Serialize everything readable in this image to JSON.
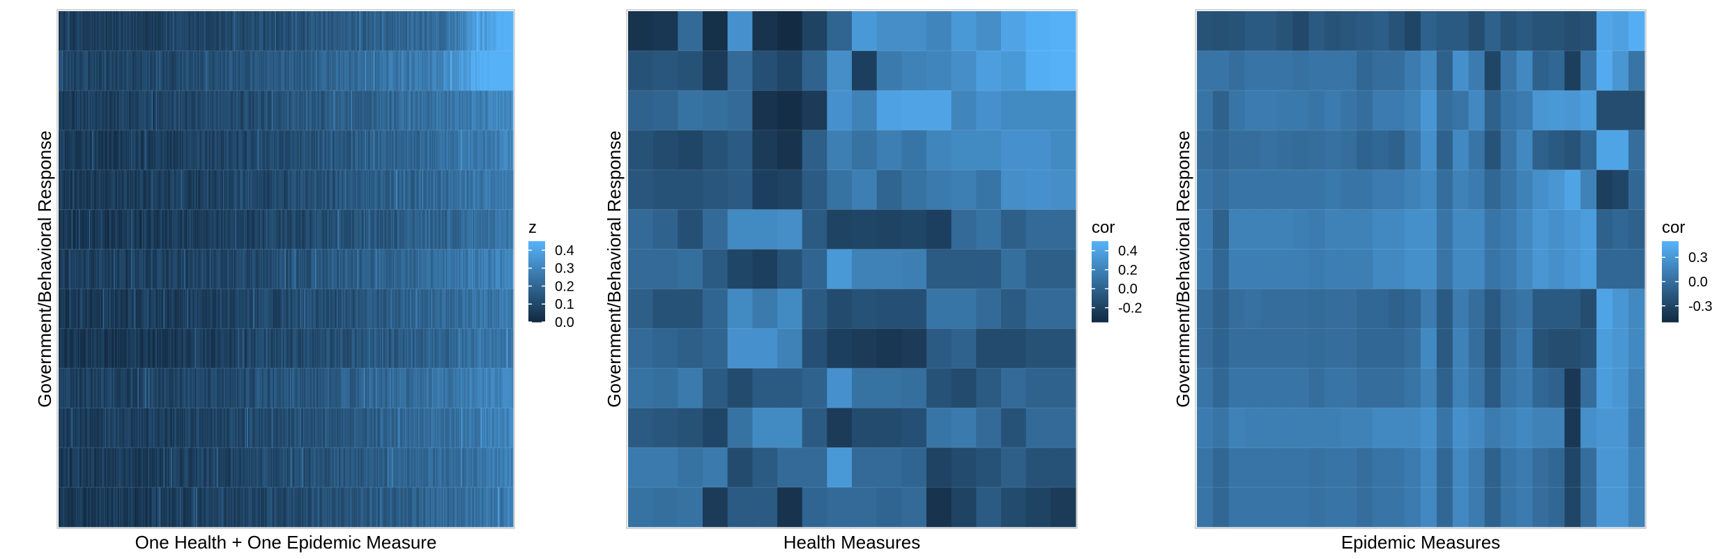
{
  "chart_data": [
    {
      "type": "heatmap",
      "xlabel": "One Health + One Epidemic Measure",
      "ylabel": "Government/Behavioral Response",
      "n_rows": 13,
      "n_cols": 420,
      "legend": {
        "title": "z",
        "ticks": [
          "0.4",
          "0.3",
          "0.2",
          "0.1",
          "0.0"
        ],
        "tick_values": [
          0.4,
          0.3,
          0.2,
          0.1,
          0.0
        ],
        "range": [
          0.0,
          0.45
        ],
        "position": "right"
      },
      "row_level": [
        0.1,
        0.16,
        0.12,
        0.1,
        0.09,
        0.07,
        0.11,
        0.08,
        0.07,
        0.12,
        0.1,
        0.09,
        0.08
      ],
      "col_trend": "values increase from left to right; highest at far right of top rows (~0.45)",
      "grid": false
    },
    {
      "type": "heatmap",
      "xlabel": "Health Measures",
      "ylabel": "Government/Behavioral Response",
      "n_rows": 13,
      "n_cols": 18,
      "legend": {
        "title": "cor",
        "ticks": [
          "0.4",
          "0.2",
          "0.0",
          "-0.2"
        ],
        "tick_values": [
          0.4,
          0.2,
          0.0,
          -0.2
        ],
        "range": [
          -0.35,
          0.5
        ],
        "position": "right"
      },
      "values": [
        [
          -0.3,
          -0.28,
          0.05,
          -0.32,
          0.3,
          -0.3,
          -0.35,
          -0.2,
          0.02,
          0.35,
          0.28,
          0.28,
          0.22,
          0.35,
          0.28,
          0.42,
          0.48,
          0.5
        ],
        [
          -0.1,
          -0.08,
          -0.1,
          -0.25,
          0.05,
          -0.12,
          -0.18,
          0.0,
          0.28,
          -0.22,
          0.15,
          0.2,
          0.22,
          0.28,
          0.38,
          0.35,
          0.48,
          0.5
        ],
        [
          0.0,
          0.02,
          0.1,
          0.08,
          0.05,
          -0.3,
          -0.33,
          -0.25,
          0.3,
          0.2,
          0.4,
          0.42,
          0.42,
          0.22,
          0.3,
          0.25,
          0.25,
          0.25
        ],
        [
          -0.1,
          -0.15,
          -0.18,
          -0.1,
          -0.05,
          -0.25,
          -0.3,
          -0.02,
          0.18,
          0.1,
          0.18,
          0.12,
          0.22,
          0.25,
          0.25,
          0.3,
          0.3,
          0.25
        ],
        [
          -0.08,
          -0.1,
          -0.1,
          -0.08,
          -0.05,
          -0.22,
          -0.2,
          -0.05,
          0.1,
          0.18,
          0.02,
          0.1,
          0.15,
          0.18,
          0.12,
          0.28,
          0.3,
          0.28
        ],
        [
          0.05,
          0.0,
          -0.12,
          0.05,
          0.25,
          0.25,
          0.28,
          -0.05,
          -0.2,
          -0.18,
          -0.2,
          -0.18,
          -0.22,
          0.05,
          0.1,
          -0.02,
          0.05,
          0.05
        ],
        [
          0.05,
          0.05,
          0.08,
          -0.05,
          -0.18,
          -0.22,
          -0.1,
          0.02,
          0.35,
          0.2,
          0.2,
          0.18,
          -0.05,
          -0.05,
          -0.05,
          0.08,
          -0.02,
          -0.02
        ],
        [
          -0.02,
          -0.1,
          -0.1,
          0.02,
          0.25,
          0.15,
          0.25,
          -0.05,
          -0.15,
          -0.1,
          -0.12,
          -0.12,
          0.12,
          0.12,
          0.05,
          -0.05,
          0.05,
          0.05
        ],
        [
          0.05,
          0.02,
          -0.02,
          0.02,
          0.3,
          0.3,
          0.2,
          -0.12,
          -0.22,
          -0.25,
          -0.28,
          -0.25,
          -0.05,
          0.0,
          -0.15,
          -0.15,
          -0.1,
          -0.1
        ],
        [
          0.1,
          0.08,
          0.15,
          -0.05,
          -0.15,
          -0.05,
          -0.05,
          0.0,
          0.3,
          0.1,
          0.1,
          0.08,
          -0.1,
          -0.15,
          -0.05,
          0.05,
          0.0,
          0.0
        ],
        [
          -0.05,
          -0.08,
          -0.1,
          -0.18,
          0.1,
          0.25,
          0.25,
          -0.05,
          -0.25,
          -0.15,
          -0.15,
          -0.12,
          0.12,
          0.15,
          0.05,
          -0.1,
          0.05,
          0.05
        ],
        [
          0.15,
          0.15,
          0.1,
          0.15,
          -0.15,
          -0.05,
          0.05,
          0.05,
          0.35,
          0.05,
          0.05,
          0.02,
          -0.2,
          -0.15,
          -0.1,
          -0.02,
          -0.1,
          -0.1
        ],
        [
          0.1,
          0.08,
          0.1,
          -0.25,
          -0.05,
          -0.05,
          -0.3,
          0.02,
          0.05,
          0.05,
          0.02,
          0.05,
          -0.3,
          -0.2,
          -0.05,
          -0.15,
          -0.2,
          -0.25
        ]
      ],
      "grid": false
    },
    {
      "type": "heatmap",
      "xlabel": "Epidemic Measures",
      "ylabel": "Government/Behavioral Response",
      "n_rows": 13,
      "n_cols": 28,
      "legend": {
        "title": "cor",
        "ticks": [
          "0.3",
          "0.0",
          "-0.3"
        ],
        "tick_values": [
          0.3,
          0.0,
          -0.3
        ],
        "range": [
          -0.5,
          0.5
        ],
        "position": "right"
      },
      "values": [
        [
          -0.2,
          -0.22,
          -0.2,
          -0.15,
          -0.15,
          -0.2,
          -0.28,
          -0.15,
          -0.2,
          -0.18,
          -0.15,
          -0.12,
          -0.2,
          -0.3,
          -0.1,
          -0.15,
          -0.15,
          -0.25,
          -0.1,
          -0.2,
          -0.15,
          -0.2,
          -0.2,
          -0.25,
          -0.22,
          0.42,
          0.38,
          0.48
        ],
        [
          0.05,
          0.05,
          0.0,
          0.05,
          0.05,
          0.05,
          0.02,
          0.05,
          0.05,
          0.05,
          -0.05,
          0.0,
          0.0,
          0.1,
          0.2,
          -0.1,
          0.25,
          0.1,
          -0.3,
          0.05,
          0.2,
          -0.1,
          -0.05,
          -0.35,
          0.05,
          0.45,
          0.3,
          0.05
        ],
        [
          0.05,
          -0.1,
          0.05,
          0.1,
          0.1,
          0.08,
          0.08,
          0.05,
          0.1,
          0.05,
          0.0,
          0.1,
          0.1,
          0.15,
          0.3,
          0.0,
          0.05,
          0.2,
          -0.1,
          0.05,
          0.1,
          0.3,
          0.32,
          0.3,
          0.35,
          -0.25,
          -0.25,
          -0.25
        ],
        [
          0.0,
          -0.05,
          0.0,
          0.0,
          0.02,
          0.0,
          -0.02,
          0.0,
          0.02,
          0.0,
          -0.08,
          -0.05,
          -0.1,
          0.05,
          0.25,
          -0.1,
          0.2,
          0.05,
          -0.2,
          0.05,
          0.2,
          -0.1,
          -0.15,
          -0.2,
          -0.05,
          0.4,
          0.4,
          0.0
        ],
        [
          0.05,
          0.0,
          0.05,
          0.05,
          0.05,
          0.05,
          0.05,
          0.05,
          0.08,
          0.05,
          0.05,
          0.1,
          0.1,
          0.15,
          0.2,
          0.0,
          0.15,
          0.1,
          -0.05,
          0.05,
          0.15,
          0.25,
          0.3,
          0.4,
          0.15,
          -0.35,
          -0.3,
          -0.05
        ],
        [
          0.1,
          -0.1,
          0.15,
          0.15,
          0.15,
          0.15,
          0.12,
          0.1,
          0.15,
          0.15,
          0.15,
          0.2,
          0.2,
          0.25,
          0.25,
          0.05,
          0.2,
          0.2,
          0.05,
          0.1,
          0.2,
          0.3,
          0.25,
          0.3,
          0.35,
          -0.1,
          -0.05,
          -0.1
        ],
        [
          0.1,
          -0.05,
          0.12,
          0.12,
          0.12,
          0.12,
          0.12,
          0.1,
          0.12,
          0.12,
          0.12,
          0.2,
          0.2,
          0.25,
          0.25,
          0.05,
          0.2,
          0.2,
          0.05,
          0.1,
          0.2,
          0.3,
          0.25,
          0.3,
          0.35,
          -0.05,
          -0.05,
          -0.05
        ],
        [
          0.0,
          -0.1,
          0.0,
          0.02,
          0.0,
          0.0,
          0.0,
          -0.02,
          0.0,
          0.0,
          -0.05,
          -0.05,
          -0.1,
          -0.05,
          0.1,
          -0.15,
          0.1,
          0.0,
          -0.15,
          0.0,
          0.05,
          -0.15,
          -0.15,
          -0.15,
          -0.25,
          0.4,
          0.3,
          0.2
        ],
        [
          0.0,
          -0.08,
          0.0,
          0.0,
          0.0,
          0.0,
          0.0,
          -0.02,
          0.0,
          0.0,
          -0.05,
          -0.05,
          -0.05,
          0.0,
          0.2,
          -0.15,
          0.15,
          0.0,
          -0.2,
          0.0,
          0.1,
          -0.2,
          -0.25,
          -0.25,
          -0.2,
          0.35,
          0.3,
          0.2
        ],
        [
          0.05,
          -0.05,
          0.05,
          0.05,
          0.05,
          0.05,
          0.05,
          0.0,
          0.05,
          0.05,
          0.0,
          0.0,
          0.0,
          0.05,
          0.15,
          -0.1,
          0.15,
          0.05,
          -0.15,
          0.05,
          0.1,
          -0.05,
          -0.1,
          -0.4,
          0.0,
          0.35,
          0.3,
          0.15
        ],
        [
          0.1,
          0.05,
          0.15,
          0.12,
          0.12,
          0.12,
          0.12,
          0.12,
          0.12,
          0.15,
          0.15,
          0.2,
          0.2,
          0.2,
          0.25,
          0.05,
          0.25,
          0.2,
          0.1,
          0.15,
          0.2,
          0.15,
          0.15,
          -0.4,
          0.25,
          0.3,
          0.3,
          0.1
        ],
        [
          0.05,
          -0.05,
          0.05,
          0.05,
          0.05,
          0.05,
          0.05,
          0.02,
          0.05,
          0.05,
          0.0,
          0.05,
          0.05,
          0.1,
          0.2,
          -0.05,
          0.2,
          0.1,
          -0.1,
          0.05,
          0.1,
          0.0,
          -0.05,
          -0.3,
          0.0,
          0.3,
          0.3,
          0.15
        ],
        [
          0.05,
          -0.05,
          0.05,
          0.05,
          0.05,
          0.05,
          0.05,
          0.02,
          0.05,
          0.05,
          0.0,
          0.05,
          0.05,
          0.1,
          0.2,
          -0.05,
          0.2,
          0.1,
          -0.1,
          0.05,
          0.1,
          0.0,
          -0.05,
          -0.3,
          0.0,
          0.3,
          0.3,
          0.15
        ]
      ],
      "grid": false
    }
  ]
}
